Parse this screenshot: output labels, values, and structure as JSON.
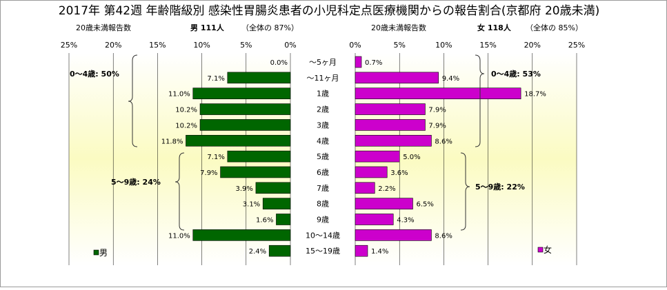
{
  "chart_data": {
    "type": "bar",
    "title": "2017年 第42週 年齢階級別 感染性胃腸炎患者の小児科定点医療機関からの報告割合(京都府 20歳未満)",
    "categories": [
      "～5ヶ月",
      "～11ヶ月",
      "1歳",
      "2歳",
      "3歳",
      "4歳",
      "5歳",
      "6歳",
      "7歳",
      "8歳",
      "9歳",
      "10～14歳",
      "15～19歳"
    ],
    "xticks": [
      "25%",
      "20%",
      "15%",
      "10%",
      "5%",
      "0%"
    ],
    "xticks_right": [
      "0%",
      "5%",
      "10%",
      "15%",
      "20%",
      "25%"
    ],
    "xlim": [
      0,
      25
    ],
    "series": [
      {
        "name": "男",
        "color": "#006600",
        "side": "left",
        "header_label": "20歳未満報告数",
        "header_count": "男 111人",
        "header_share": "（全体の 87%）",
        "values": [
          0.0,
          7.1,
          11.0,
          10.2,
          10.2,
          11.8,
          7.1,
          7.9,
          3.9,
          3.1,
          1.6,
          11.0,
          2.4
        ],
        "labels": [
          "0.0%",
          "7.1%",
          "11.0%",
          "10.2%",
          "10.2%",
          "11.8%",
          "7.1%",
          "7.9%",
          "3.9%",
          "3.1%",
          "1.6%",
          "11.0%",
          "2.4%"
        ]
      },
      {
        "name": "女",
        "color": "#CC00CC",
        "side": "right",
        "header_label": "20歳未満報告数",
        "header_count": "女 118人",
        "header_share": "（全体の 85%）",
        "values": [
          0.7,
          9.4,
          18.7,
          7.9,
          7.9,
          8.6,
          5.0,
          3.6,
          2.2,
          6.5,
          4.3,
          8.6,
          1.4
        ],
        "labels": [
          "0.7%",
          "9.4%",
          "18.7%",
          "7.9%",
          "7.9%",
          "8.6%",
          "5.0%",
          "3.6%",
          "2.2%",
          "6.5%",
          "4.3%",
          "8.6%",
          "1.4%"
        ]
      }
    ],
    "annotations": {
      "male_0_4": "0～4歳: 50%",
      "male_5_9": "5～9歳: 24%",
      "female_0_4": "0～4歳: 53%",
      "female_5_9": "5～9歳: 22%"
    },
    "grid": true,
    "legend_position": "bottom-left / bottom-right"
  }
}
